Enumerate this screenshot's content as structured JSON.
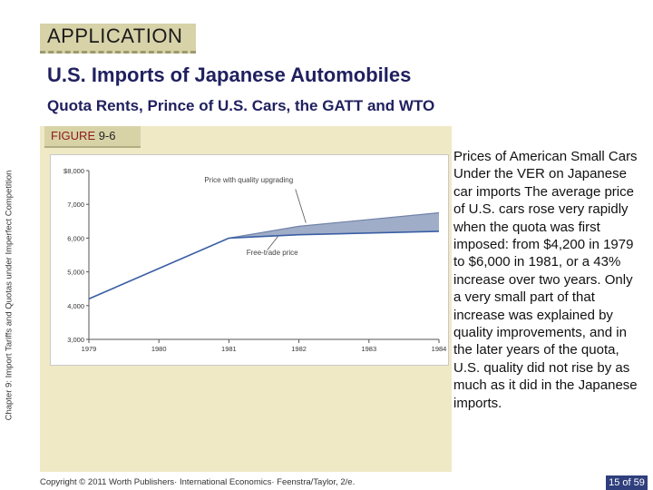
{
  "header": {
    "tab_label": "APPLICATION"
  },
  "title": "U.S. Imports of Japanese Automobiles",
  "subtitle": "Quota Rents, Prince of U.S. Cars, the GATT and WTO",
  "side_label": "Chapter 9: Import Tariffs and Quotas under Imperfect Competition",
  "figure": {
    "label_word": "FIGURE",
    "label_num": "9-6"
  },
  "description": "Prices of American Small Cars Under the VER on Japanese car imports  The average price of U.S. cars rose very rapidly when the quota was first imposed: from $4,200 in 1979 to $6,000 in 1981, or a 43% increase over two years. Only a very small part of that increase was explained by quality improvements, and in the later years of the quota, U.S. quality did not rise by as much as it did in the Japanese imports.",
  "footer": {
    "copyright": "Copyright © 2011 Worth Publishers· International Economics· Feenstra/Taylor, 2/e.",
    "page": "15 of 59"
  },
  "colors": {
    "quality_band": "#8f9fbe",
    "free_trade_line": "#3a5fa4",
    "panel_bg": "#efe9c6"
  },
  "chart_data": {
    "type": "line",
    "title": "",
    "xlabel": "",
    "ylabel": "",
    "x": [
      1979,
      1980,
      1981,
      1982,
      1983,
      1984
    ],
    "x_tick_labels": [
      "1979",
      "1980",
      "1981",
      "1982",
      "1983",
      "1984"
    ],
    "y_tick_labels": [
      "$8,000",
      "7,000",
      "6,000",
      "5,000",
      "4,000",
      "3,000"
    ],
    "y_ticks": [
      8000,
      7000,
      6000,
      5000,
      4000,
      3000
    ],
    "xlim": [
      1979,
      1984
    ],
    "ylim": [
      3000,
      8000
    ],
    "series": [
      {
        "name": "Price with quality upgrading",
        "values": [
          4200,
          5100,
          6000,
          6350,
          6550,
          6750
        ]
      },
      {
        "name": "Free-trade price",
        "values": [
          4200,
          5100,
          6000,
          6100,
          6150,
          6200
        ]
      }
    ],
    "annotations": [
      "Price with quality upgrading",
      "Free-trade price"
    ]
  }
}
